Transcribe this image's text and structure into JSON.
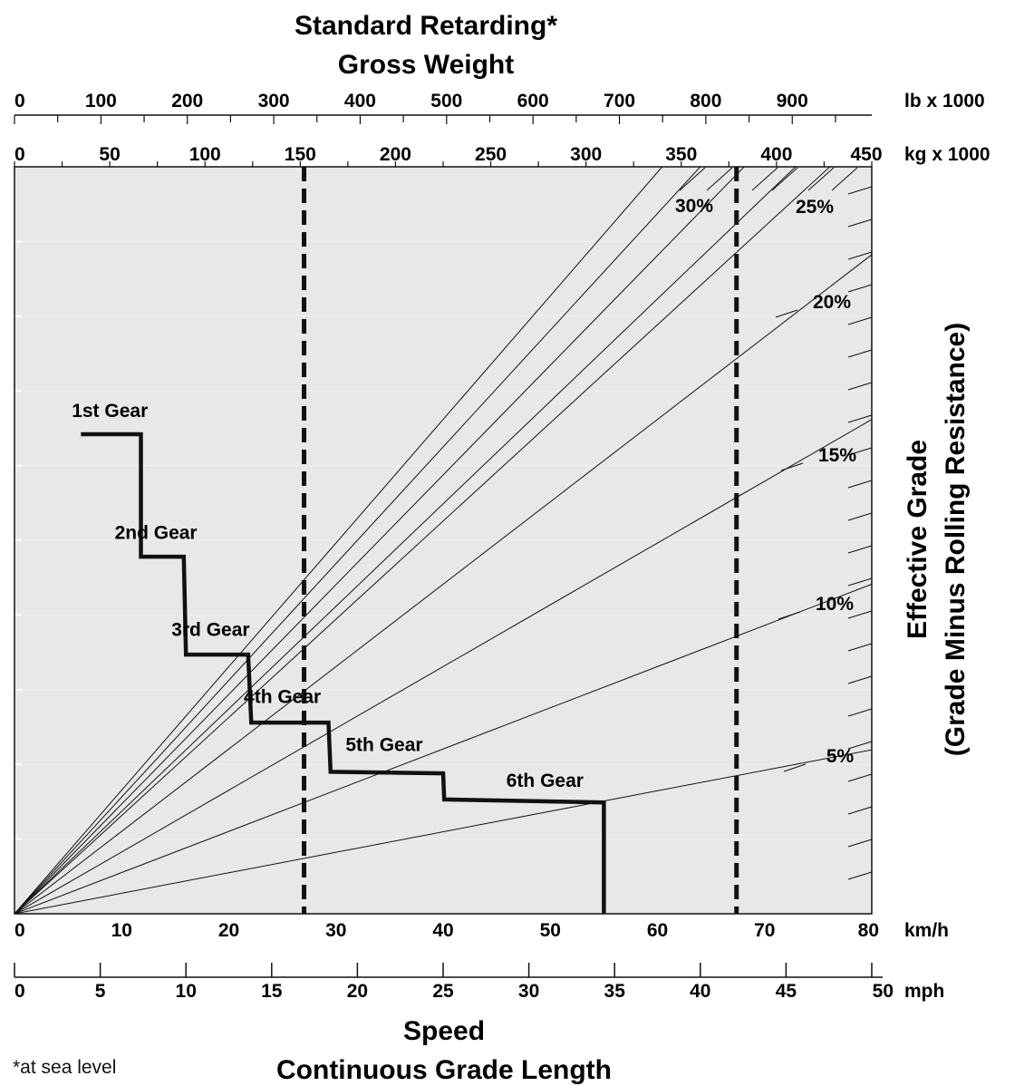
{
  "chart_data": {
    "type": "line",
    "title": "Standard Retarding*",
    "top_axis_title": "Gross Weight",
    "bottom_axis_title": "Speed",
    "bottom_axis_subtitle": "Continuous Grade Length",
    "right_axis_title": "Effective Grade",
    "right_axis_subtitle": "(Grade Minus Rolling Resistance)",
    "footnote": "*at sea level",
    "axes": {
      "lb": {
        "unit": "lb x 1000",
        "ticks": [
          "0",
          "100",
          "200",
          "300",
          "400",
          "500",
          "600",
          "700",
          "800",
          "900"
        ],
        "range": [
          0,
          992
        ]
      },
      "kg": {
        "unit": "kg x 1000",
        "ticks": [
          "0",
          "50",
          "100",
          "150",
          "200",
          "250",
          "300",
          "350",
          "400",
          "450"
        ],
        "range": [
          0,
          450
        ]
      },
      "kmh": {
        "unit": "km/h",
        "ticks": [
          "0",
          "10",
          "20",
          "30",
          "40",
          "50",
          "60",
          "70",
          "80"
        ],
        "range": [
          0,
          80
        ]
      },
      "mph": {
        "unit": "mph",
        "ticks": [
          "0",
          "5",
          "10",
          "15",
          "20",
          "25",
          "30",
          "35",
          "40",
          "45",
          "50"
        ],
        "range": [
          0,
          50
        ]
      }
    },
    "grade_lines": [
      {
        "label": "5%",
        "grade": 5,
        "kg_at_top": 2050
      },
      {
        "label": "10%",
        "grade": 10,
        "kg_at_top": 1020
      },
      {
        "label": "15%",
        "grade": 15,
        "kg_at_top": 680
      },
      {
        "label": "20%",
        "grade": 20,
        "kg_at_top": 510
      },
      {
        "label": "25%",
        "grade": 25,
        "kg_at_top": 410
      },
      {
        "label": "30%",
        "grade": 30,
        "kg_at_top": 340
      }
    ],
    "unlabeled_grade_lines_kg_at_top": [
      360,
      383,
      428
    ],
    "gear_curve": {
      "points": [
        {
          "kmh": 6.2,
          "frac": 0.642
        },
        {
          "kmh": 11.8,
          "frac": 0.642
        },
        {
          "kmh": 11.8,
          "frac": 0.478
        },
        {
          "kmh": 15.8,
          "frac": 0.478
        },
        {
          "kmh": 16.0,
          "frac": 0.347
        },
        {
          "kmh": 21.8,
          "frac": 0.347
        },
        {
          "kmh": 22.1,
          "frac": 0.256
        },
        {
          "kmh": 29.3,
          "frac": 0.256
        },
        {
          "kmh": 29.5,
          "frac": 0.19
        },
        {
          "kmh": 40.0,
          "frac": 0.188
        },
        {
          "kmh": 40.1,
          "frac": 0.153
        },
        {
          "kmh": 55.0,
          "frac": 0.149
        },
        {
          "kmh": 55.0,
          "frac": 0.0
        }
      ],
      "gears": [
        {
          "label": "1st Gear",
          "kmh": 8.9,
          "frac": 0.665
        },
        {
          "label": "2nd Gear",
          "kmh": 13.2,
          "frac": 0.502
        },
        {
          "label": "3rd Gear",
          "kmh": 18.3,
          "frac": 0.372
        },
        {
          "label": "4th Gear",
          "kmh": 25.0,
          "frac": 0.282
        },
        {
          "label": "5th Gear",
          "kmh": 34.5,
          "frac": 0.218
        },
        {
          "label": "6th Gear",
          "kmh": 49.5,
          "frac": 0.17
        }
      ]
    },
    "reference_lines_kg": [
      152,
      379
    ],
    "grid": true,
    "colors": {
      "background": "#e8e8e8",
      "line": "#111111"
    }
  }
}
